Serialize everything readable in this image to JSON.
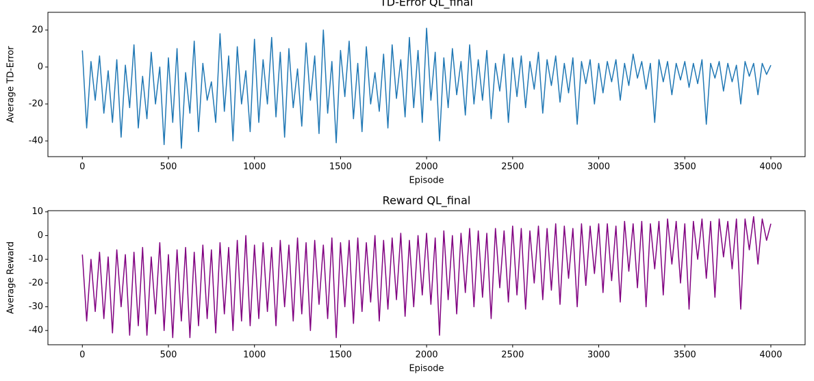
{
  "chart_data": [
    {
      "type": "line",
      "title": "TD-Error QL_final",
      "xlabel": "Episode",
      "ylabel": "Average TD-Error",
      "color": "#1f77b4",
      "x": [
        0,
        25,
        50,
        75,
        100,
        125,
        150,
        175,
        200,
        225,
        250,
        275,
        300,
        325,
        350,
        375,
        400,
        425,
        450,
        475,
        500,
        525,
        550,
        575,
        600,
        625,
        650,
        675,
        700,
        725,
        750,
        775,
        800,
        825,
        850,
        875,
        900,
        925,
        950,
        975,
        1000,
        1025,
        1050,
        1075,
        1100,
        1125,
        1150,
        1175,
        1200,
        1225,
        1250,
        1275,
        1300,
        1325,
        1350,
        1375,
        1400,
        1425,
        1450,
        1475,
        1500,
        1525,
        1550,
        1575,
        1600,
        1625,
        1650,
        1675,
        1700,
        1725,
        1750,
        1775,
        1800,
        1825,
        1850,
        1875,
        1900,
        1925,
        1950,
        1975,
        2000,
        2025,
        2050,
        2075,
        2100,
        2125,
        2150,
        2175,
        2200,
        2225,
        2250,
        2275,
        2300,
        2325,
        2350,
        2375,
        2400,
        2425,
        2450,
        2475,
        2500,
        2525,
        2550,
        2575,
        2600,
        2625,
        2650,
        2675,
        2700,
        2725,
        2750,
        2775,
        2800,
        2825,
        2850,
        2875,
        2900,
        2925,
        2950,
        2975,
        3000,
        3025,
        3050,
        3075,
        3100,
        3125,
        3150,
        3175,
        3200,
        3225,
        3250,
        3275,
        3300,
        3325,
        3350,
        3375,
        3400,
        3425,
        3450,
        3475,
        3500,
        3525,
        3550,
        3575,
        3600,
        3625,
        3650,
        3675,
        3700,
        3725,
        3750,
        3775,
        3800,
        3825,
        3850,
        3875,
        3900,
        3925,
        3950,
        3975,
        4000
      ],
      "values": [
        9,
        -33,
        3,
        -18,
        6,
        -25,
        -2,
        -30,
        4,
        -38,
        1,
        -22,
        12,
        -33,
        -5,
        -28,
        8,
        -20,
        0,
        -42,
        5,
        -30,
        10,
        -44,
        -3,
        -25,
        14,
        -35,
        2,
        -18,
        -8,
        -30,
        18,
        -24,
        6,
        -40,
        11,
        -20,
        -2,
        -35,
        15,
        -30,
        4,
        -20,
        16,
        -27,
        8,
        -38,
        10,
        -22,
        -1,
        -32,
        13,
        -18,
        6,
        -36,
        20,
        -25,
        3,
        -41,
        9,
        -16,
        14,
        -28,
        2,
        -35,
        11,
        -20,
        -3,
        -24,
        7,
        -33,
        12,
        -17,
        4,
        -27,
        16,
        -22,
        9,
        -30,
        21,
        -18,
        8,
        -40,
        5,
        -22,
        10,
        -15,
        3,
        -26,
        12,
        -20,
        4,
        -18,
        9,
        -28,
        2,
        -13,
        7,
        -30,
        5,
        -16,
        6,
        -22,
        3,
        -12,
        8,
        -25,
        4,
        -10,
        6,
        -19,
        2,
        -14,
        5,
        -31,
        3,
        -9,
        4,
        -20,
        2,
        -14,
        3,
        -8,
        4,
        -18,
        2,
        -10,
        7,
        -6,
        3,
        -12,
        2,
        -30,
        4,
        -8,
        3,
        -15,
        2,
        -7,
        3,
        -11,
        2,
        -9,
        4,
        -31,
        2,
        -6,
        3,
        -13,
        2,
        -8,
        1,
        -20,
        3,
        -5,
        2,
        -15,
        2,
        -4,
        1
      ],
      "xlim": [
        -200,
        4199
      ],
      "xticks": [
        0,
        500,
        1000,
        1500,
        2000,
        2500,
        3000,
        3500,
        4000
      ],
      "ylim": [
        -48.5,
        29.6
      ],
      "yticks": [
        -40,
        -20,
        0,
        20
      ]
    },
    {
      "type": "line",
      "title": "Reward QL_final",
      "xlabel": "Episode",
      "ylabel": "Average Reward",
      "color": "#800080",
      "x": [
        0,
        25,
        50,
        75,
        100,
        125,
        150,
        175,
        200,
        225,
        250,
        275,
        300,
        325,
        350,
        375,
        400,
        425,
        450,
        475,
        500,
        525,
        550,
        575,
        600,
        625,
        650,
        675,
        700,
        725,
        750,
        775,
        800,
        825,
        850,
        875,
        900,
        925,
        950,
        975,
        1000,
        1025,
        1050,
        1075,
        1100,
        1125,
        1150,
        1175,
        1200,
        1225,
        1250,
        1275,
        1300,
        1325,
        1350,
        1375,
        1400,
        1425,
        1450,
        1475,
        1500,
        1525,
        1550,
        1575,
        1600,
        1625,
        1650,
        1675,
        1700,
        1725,
        1750,
        1775,
        1800,
        1825,
        1850,
        1875,
        1900,
        1925,
        1950,
        1975,
        2000,
        2025,
        2050,
        2075,
        2100,
        2125,
        2150,
        2175,
        2200,
        2225,
        2250,
        2275,
        2300,
        2325,
        2350,
        2375,
        2400,
        2425,
        2450,
        2475,
        2500,
        2525,
        2550,
        2575,
        2600,
        2625,
        2650,
        2675,
        2700,
        2725,
        2750,
        2775,
        2800,
        2825,
        2850,
        2875,
        2900,
        2925,
        2950,
        2975,
        3000,
        3025,
        3050,
        3075,
        3100,
        3125,
        3150,
        3175,
        3200,
        3225,
        3250,
        3275,
        3300,
        3325,
        3350,
        3375,
        3400,
        3425,
        3450,
        3475,
        3500,
        3525,
        3550,
        3575,
        3600,
        3625,
        3650,
        3675,
        3700,
        3725,
        3750,
        3775,
        3800,
        3825,
        3850,
        3875,
        3900,
        3925,
        3950,
        3975,
        4000
      ],
      "values": [
        -8,
        -36,
        -10,
        -32,
        -7,
        -35,
        -9,
        -41,
        -6,
        -30,
        -8,
        -42,
        -7,
        -38,
        -5,
        -42,
        -9,
        -33,
        -3,
        -40,
        -8,
        -43,
        -6,
        -36,
        -5,
        -43,
        -7,
        -38,
        -4,
        -35,
        -6,
        -41,
        -3,
        -33,
        -5,
        -40,
        -2,
        -36,
        0,
        -38,
        -4,
        -35,
        -3,
        -32,
        -5,
        -38,
        -2,
        -30,
        -4,
        -36,
        -1,
        -33,
        -3,
        -40,
        -2,
        -29,
        -4,
        -35,
        -1,
        -43,
        -3,
        -30,
        -2,
        -37,
        -1,
        -32,
        -3,
        -28,
        0,
        -36,
        -2,
        -31,
        -1,
        -27,
        1,
        -34,
        -2,
        -30,
        0,
        -25,
        1,
        -29,
        -1,
        -42,
        2,
        -27,
        0,
        -33,
        1,
        -24,
        3,
        -30,
        2,
        -26,
        1,
        -35,
        3,
        -22,
        2,
        -28,
        4,
        -25,
        3,
        -31,
        2,
        -20,
        4,
        -27,
        3,
        -23,
        5,
        -29,
        4,
        -18,
        3,
        -30,
        5,
        -21,
        4,
        -16,
        5,
        -24,
        5,
        -19,
        4,
        -28,
        6,
        -15,
        5,
        -22,
        6,
        -30,
        5,
        -14,
        6,
        -25,
        7,
        -12,
        6,
        -20,
        5,
        -31,
        6,
        -10,
        7,
        -18,
        6,
        -26,
        7,
        -9,
        6,
        -14,
        7,
        -31,
        7,
        -6,
        8,
        -12,
        7,
        -2,
        5
      ],
      "xlim": [
        -200,
        4199
      ],
      "xticks": [
        0,
        500,
        1000,
        1500,
        2000,
        2500,
        3000,
        3500,
        4000
      ],
      "ylim": [
        -46,
        10.5
      ],
      "yticks": [
        -40,
        -30,
        -20,
        -10,
        0,
        10
      ]
    }
  ]
}
